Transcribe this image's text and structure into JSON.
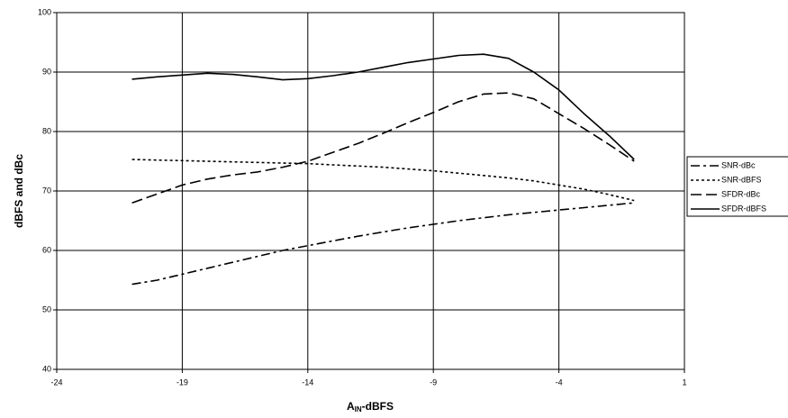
{
  "chart_data": {
    "type": "line",
    "x_label": [
      "A",
      "IN",
      "-dBFS"
    ],
    "y_label": "dBFS and dBc",
    "x": [
      -21,
      -20,
      -19,
      -18,
      -17,
      -16,
      -15,
      -14,
      -13,
      -12,
      -11,
      -10,
      -9,
      -8,
      -7,
      -6,
      -5,
      -4,
      -3,
      -2,
      -1
    ],
    "series": [
      {
        "name": "SNR-dBc",
        "color": "#000000",
        "dash": "10 4 3 4",
        "values": [
          54.3,
          55,
          56,
          57,
          58,
          59,
          60,
          60.8,
          61.6,
          62.4,
          63.1,
          63.8,
          64.4,
          65,
          65.5,
          66,
          66.4,
          66.8,
          67.2,
          67.6,
          68
        ]
      },
      {
        "name": "SNR-dBFS",
        "color": "#000000",
        "dash": "3 3",
        "values": [
          75.3,
          75.2,
          75.1,
          75.0,
          74.9,
          74.8,
          74.7,
          74.6,
          74.4,
          74.2,
          74.0,
          73.7,
          73.4,
          73.0,
          72.6,
          72.2,
          71.7,
          71.0,
          70.3,
          69.4,
          68.4
        ]
      },
      {
        "name": "SFDR-dBc",
        "color": "#000000",
        "dash": "12 5",
        "values": [
          68,
          69.5,
          71,
          72,
          72.7,
          73.2,
          74,
          75,
          76.5,
          78,
          79.7,
          81.5,
          83.2,
          85,
          86.3,
          86.5,
          85.5,
          83,
          80.5,
          77.8,
          75
        ]
      },
      {
        "name": "SFDR-dBFS",
        "color": "#000000",
        "dash": "none",
        "values": [
          88.8,
          89.2,
          89.5,
          89.8,
          89.6,
          89.2,
          88.7,
          88.9,
          89.4,
          90,
          90.8,
          91.6,
          92.2,
          92.8,
          93,
          92.3,
          90,
          87,
          83,
          79.3,
          75.3
        ]
      }
    ],
    "xlim": [
      -24,
      1
    ],
    "xticks": [
      -24,
      -19,
      -14,
      -9,
      -4,
      1
    ],
    "ylim": [
      40,
      100
    ],
    "yticks": [
      40,
      50,
      60,
      70,
      80,
      90,
      100
    ],
    "grid": true,
    "legend": "right"
  }
}
